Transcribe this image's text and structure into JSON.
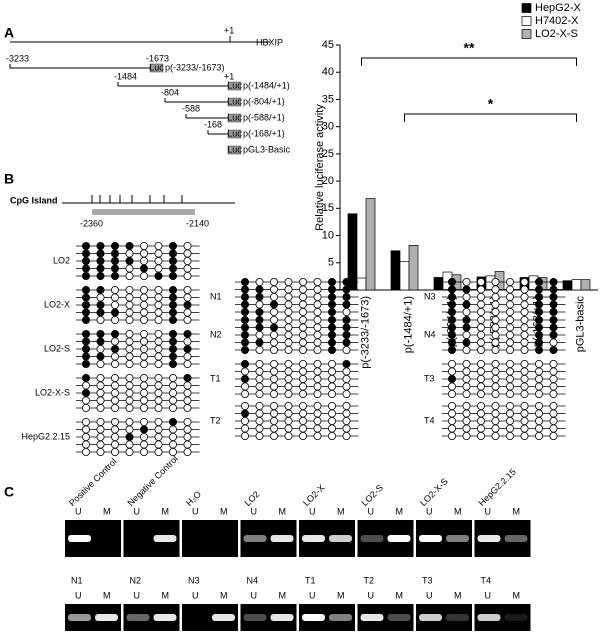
{
  "panel_labels": [
    "A",
    "B",
    "C"
  ],
  "constructs": {
    "tss": "+1",
    "gene": "HBXIP",
    "luc": "Luc",
    "basic": "pGL3-Basic",
    "items": [
      {
        "start": "-3233",
        "end": "-1673",
        "name": "p(-3233/-1673)"
      },
      {
        "start": "-1484",
        "end": "+1",
        "name": "p(-1484/+1)"
      },
      {
        "start": "-804",
        "name": "p(-804/+1)"
      },
      {
        "start": "-588",
        "name": "p(-588/+1)"
      },
      {
        "start": "-168",
        "name": "p(-168/+1)"
      }
    ]
  },
  "chart_data": {
    "type": "bar",
    "ylabel": "Relative luciferase activity",
    "categories": [
      "p(-3233/-1673)",
      "p(-1484/+1)",
      "p(-804/+1)",
      "p(-588/+1)",
      "p(-168/+1)",
      "pGL3-basic"
    ],
    "series": [
      {
        "name": "HepG2-X",
        "color": "#000000",
        "values": [
          14,
          7.2,
          2.3,
          2.4,
          2.3,
          1.7
        ]
      },
      {
        "name": "H7402-X",
        "color": "#ffffff",
        "values": [
          2.2,
          5.2,
          3.3,
          2.6,
          2.6,
          1.9
        ]
      },
      {
        "name": "LO2-X-S",
        "color": "#b0b0b0",
        "values": [
          16.8,
          8.2,
          2.8,
          3.4,
          2.3,
          1.9
        ]
      }
    ],
    "ylim": [
      0,
      45
    ],
    "yticks": [
      0,
      5,
      10,
      15,
      20,
      25,
      30,
      35,
      40,
      45
    ],
    "legend": "top-right",
    "significance": [
      "**",
      "*"
    ]
  },
  "methylation": {
    "title": "CpG Island",
    "start": "-2360",
    "end": "-2140",
    "samples": [
      {
        "name": "LO2",
        "rows": [
          "11110010",
          "11100010",
          "11110010",
          "11101010",
          "11100110"
        ]
      },
      {
        "name": "LO2-X",
        "rows": [
          "11000010",
          "10000010",
          "11000011",
          "11100010",
          "10000010"
        ]
      },
      {
        "name": "LO2-S",
        "rows": [
          "11100011",
          "11000010",
          "10100011",
          "11000010",
          "10000010"
        ]
      },
      {
        "name": "LO2-X-S",
        "rows": [
          "10000001",
          "00000000",
          "10000000",
          "00000000",
          "00000000"
        ]
      },
      {
        "name": "HepG2.2.15",
        "rows": [
          "00000010",
          "00001000",
          "00010000",
          "00000000",
          "00000000"
        ]
      },
      {
        "name": "N1",
        "rows": [
          "10000011",
          "11000011",
          "11000011",
          "10100011",
          "11000010"
        ]
      },
      {
        "name": "N2",
        "rows": [
          "11000011",
          "11100011",
          "10000011",
          "11000011",
          "10000010"
        ]
      },
      {
        "name": "T1",
        "rows": [
          "10000001",
          "00000000",
          "10000000",
          "00000000",
          "00000000"
        ]
      },
      {
        "name": "T2",
        "rows": [
          "00000000",
          "10000000",
          "00000000",
          "00000000",
          "00000000"
        ]
      },
      {
        "name": "N3",
        "rows": [
          "10000011",
          "11000011",
          "10000011",
          "11000011",
          "10000011"
        ]
      },
      {
        "name": "N4",
        "rows": [
          "11000011",
          "11000011",
          "10000011",
          "11000010",
          "10000011"
        ]
      },
      {
        "name": "T3",
        "rows": [
          "00000000",
          "00000000",
          "10000000",
          "00000000",
          "00000000"
        ]
      },
      {
        "name": "T4",
        "rows": [
          "00000000",
          "00000000",
          "00000000",
          "00000000",
          "00000000"
        ]
      }
    ]
  },
  "gel": {
    "u": "U",
    "m": "M",
    "lanes": [
      {
        "name": "Positive Control",
        "U": 1,
        "M": 0
      },
      {
        "name": "Negative Control",
        "U": 0,
        "M": 0.9
      },
      {
        "name": "H₂O",
        "U": 0,
        "M": 0
      },
      {
        "name": "LO2",
        "U": 0.5,
        "M": 0.9
      },
      {
        "name": "LO2-X",
        "U": 0.9,
        "M": 0.8
      },
      {
        "name": "LO2-S",
        "U": 0.3,
        "M": 1
      },
      {
        "name": "LO2-X-S",
        "U": 1,
        "M": 0.5
      },
      {
        "name": "HepG2.2.15",
        "U": 0.9,
        "M": 0.4
      },
      {
        "name": "N1",
        "U": 0.6,
        "M": 0.9
      },
      {
        "name": "N2",
        "U": 0.4,
        "M": 0.9
      },
      {
        "name": "N3",
        "U": 0,
        "M": 0.9
      },
      {
        "name": "N4",
        "U": 0.3,
        "M": 0.9
      },
      {
        "name": "T1",
        "U": 1,
        "M": 0.5
      },
      {
        "name": "T2",
        "U": 0.9,
        "M": 0.3
      },
      {
        "name": "T3",
        "U": 0.8,
        "M": 0.2
      },
      {
        "name": "T4",
        "U": 0.8,
        "M": 0.1
      }
    ]
  }
}
